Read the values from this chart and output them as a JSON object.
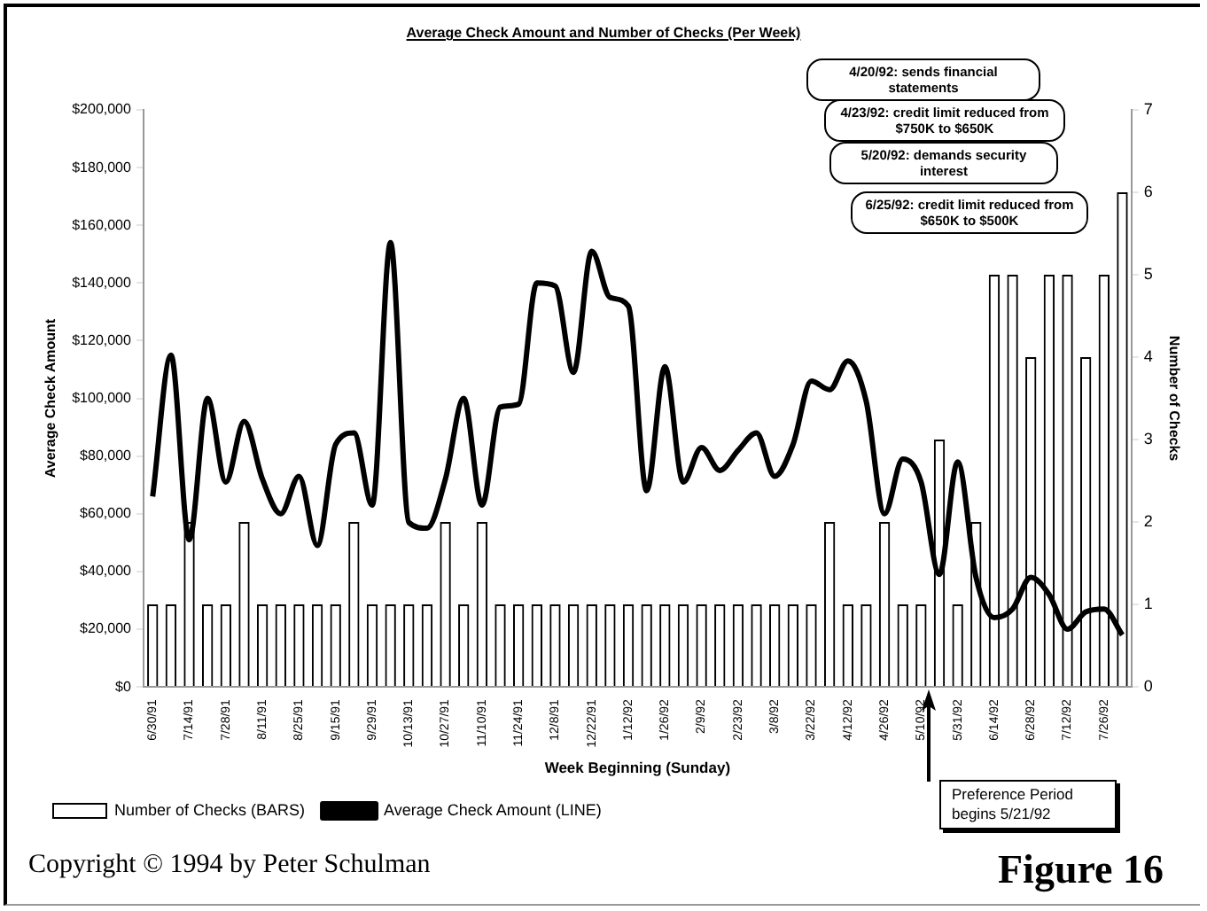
{
  "chart_data": {
    "type": "bar",
    "title": "Average Check Amount and Number of Checks (Per Week)",
    "xlabel": "Week Beginning (Sunday)",
    "ylabel": "Average Check Amount",
    "y2label": "Number of Checks",
    "categories": [
      "6/30/91",
      null,
      "7/14/91",
      null,
      "7/28/91",
      null,
      "8/11/91",
      null,
      "8/25/91",
      null,
      "9/15/91",
      null,
      "9/29/91",
      null,
      "10/13/91",
      null,
      "10/27/91",
      null,
      "11/10/91",
      null,
      "11/24/91",
      null,
      "12/8/91",
      null,
      "12/22/91",
      null,
      "1/12/92",
      null,
      "1/26/92",
      null,
      "2/9/92",
      null,
      "2/23/92",
      null,
      "3/8/92",
      null,
      "3/22/92",
      null,
      "4/12/92",
      null,
      "4/26/92",
      null,
      "5/10/92",
      null,
      "5/31/92",
      null,
      "6/14/92",
      null,
      "6/28/92",
      null,
      "7/12/92",
      null,
      "7/26/92",
      null
    ],
    "series": [
      {
        "name": "Number of Checks (BARS)",
        "axis": "y2",
        "color": "#000000",
        "values": [
          1,
          1,
          2,
          1,
          1,
          2,
          1,
          1,
          1,
          1,
          1,
          2,
          1,
          1,
          1,
          1,
          2,
          1,
          2,
          1,
          1,
          1,
          1,
          1,
          1,
          1,
          1,
          1,
          1,
          1,
          1,
          1,
          1,
          1,
          1,
          1,
          1,
          2,
          1,
          1,
          2,
          1,
          1,
          3,
          1,
          2,
          5,
          5,
          4,
          5,
          5,
          4,
          5,
          6
        ]
      },
      {
        "name": "Average Check Amount (LINE)",
        "axis": "y",
        "type": "line",
        "color": "#000000",
        "values": [
          66000,
          115000,
          51000,
          100000,
          71000,
          92000,
          72000,
          60000,
          73000,
          49000,
          84000,
          88000,
          63000,
          154000,
          57000,
          55000,
          72000,
          100000,
          63000,
          97000,
          98000,
          140000,
          139000,
          109000,
          151000,
          135000,
          132000,
          68000,
          111000,
          71000,
          83000,
          75000,
          82000,
          88000,
          73000,
          84000,
          106000,
          103000,
          113000,
          99000,
          60000,
          79000,
          71000,
          39000,
          78000,
          38000,
          24000,
          27000,
          38000,
          32000,
          20000,
          26000,
          27000,
          18000
        ]
      }
    ],
    "ylim": [
      0,
      200000
    ],
    "yticks": [
      {
        "value": 0,
        "label": "$0"
      },
      {
        "value": 20000,
        "label": "$20,000"
      },
      {
        "value": 40000,
        "label": "$40,000"
      },
      {
        "value": 60000,
        "label": "$60,000"
      },
      {
        "value": 80000,
        "label": "$80,000"
      },
      {
        "value": 100000,
        "label": "$100,000"
      },
      {
        "value": 120000,
        "label": "$120,000"
      },
      {
        "value": 140000,
        "label": "$140,000"
      },
      {
        "value": 160000,
        "label": "$160,000"
      },
      {
        "value": 180000,
        "label": "$180,000"
      },
      {
        "value": 200000,
        "label": "$200,000"
      }
    ],
    "y2lim": [
      0,
      7
    ],
    "y2ticks": [
      0,
      1,
      2,
      3,
      4,
      5,
      6,
      7
    ],
    "grid": false,
    "legend": "bottom left",
    "annotations": [
      "4/20/92: sends financial statements",
      "4/23/92: credit limit reduced from $750K to $650K",
      "5/20/92: demands security interest",
      "6/25/92: credit limit reduced from $650K to $500K",
      "Preference Period begins 5/21/92",
      "Copyright © 1994 by Peter Schulman",
      "Figure 16"
    ]
  }
}
